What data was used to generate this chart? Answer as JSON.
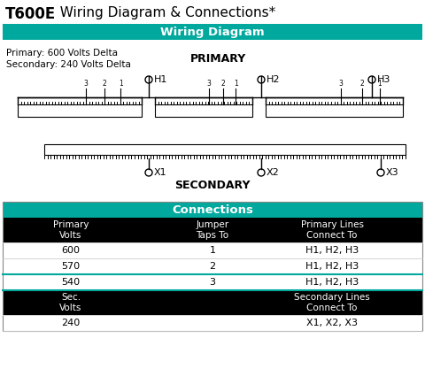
{
  "title_bold": "T600E",
  "title_rest": "  Wiring Diagram & Connections*",
  "wiring_header": "Wiring Diagram",
  "connections_header": "Connections",
  "teal_color": "#00a89d",
  "black_color": "#000000",
  "white_color": "#ffffff",
  "gray_line_color": "#aaaaaa",
  "teal_line_color": "#00a89d",
  "primary_label": "PRIMARY",
  "secondary_label": "SECONDARY",
  "primary_info_line1": "Primary: 600 Volts Delta",
  "primary_info_line2": "Secondary: 240 Volts Delta",
  "h_labels": [
    "H1",
    "H2",
    "H3"
  ],
  "x_labels": [
    "X1",
    "X2",
    "X3"
  ],
  "col_headers": [
    "Primary\nVolts",
    "Jumper\nTaps To",
    "Primary Lines\nConnect To"
  ],
  "col_headers2": [
    "Sec.\nVolts",
    "",
    "Secondary Lines\nConnect To"
  ],
  "table_rows": [
    [
      "600",
      "1",
      "H1, H2, H3"
    ],
    [
      "570",
      "2",
      "H1, H2, H3"
    ],
    [
      "540",
      "3",
      "H1, H2, H3"
    ]
  ],
  "sec_row": [
    "240",
    "",
    "X1, X2, X3"
  ],
  "bg_color": "#ffffff"
}
